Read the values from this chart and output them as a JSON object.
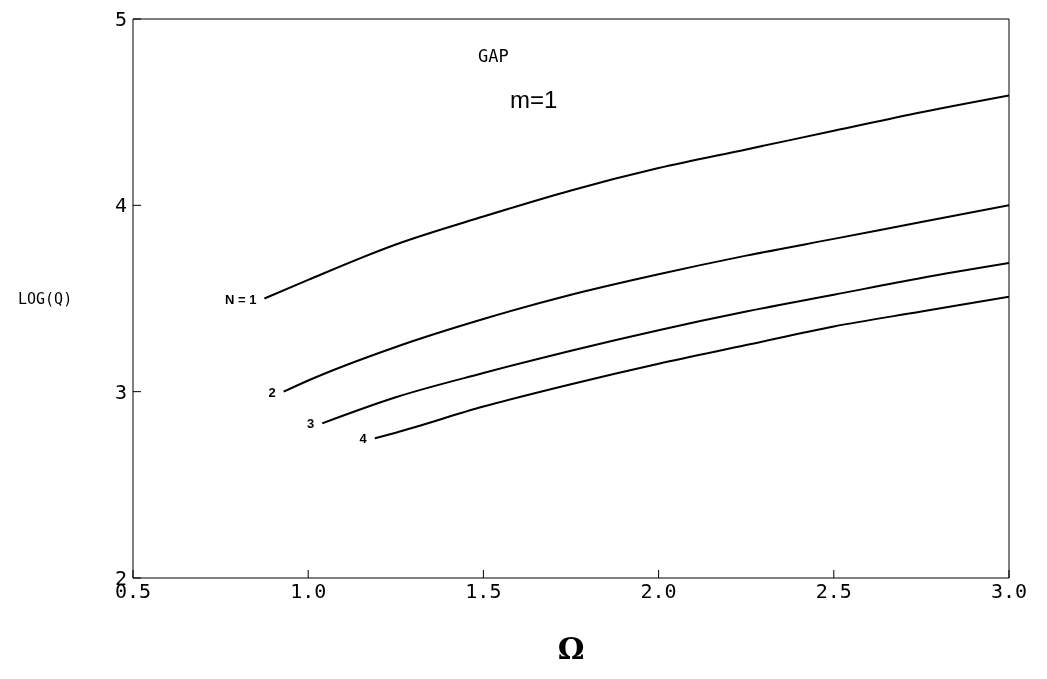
{
  "chart_data": {
    "type": "line",
    "title": "GAP",
    "annotations": [
      "m=1"
    ],
    "xlabel": "Ω",
    "ylabel": "LOG(Q)",
    "xlim": [
      0.5,
      3.0
    ],
    "xticks": [
      {
        "value": 0.5,
        "label": "0.5"
      },
      {
        "value": 1,
        "label": "1.0"
      },
      {
        "value": 1.5,
        "label": "1.5"
      },
      {
        "value": 2,
        "label": "2.0"
      },
      {
        "value": 2.5,
        "label": "2.5"
      },
      {
        "value": 3,
        "label": "3.0"
      }
    ],
    "ylim": [
      2,
      5
    ],
    "yticks": [
      2,
      3,
      4,
      5
    ],
    "marker": "none",
    "line_style": "solid",
    "series": [
      {
        "name": "N = 1",
        "color": "#000000",
        "x": [
          0.875,
          1.0,
          1.25,
          1.5,
          1.75,
          2.0,
          2.25,
          2.5,
          2.75,
          3.0
        ],
        "values": [
          3.5,
          3.6,
          3.79,
          3.94,
          4.08,
          4.2,
          4.3,
          4.4,
          4.5,
          4.59
        ]
      },
      {
        "name": "2",
        "color": "#000000",
        "x": [
          0.93,
          1.0,
          1.25,
          1.5,
          1.75,
          2.0,
          2.25,
          2.5,
          2.75,
          3.0
        ],
        "values": [
          3.0,
          3.06,
          3.24,
          3.39,
          3.52,
          3.63,
          3.73,
          3.82,
          3.91,
          4.0
        ]
      },
      {
        "name": "3",
        "color": "#000000",
        "x": [
          1.04,
          1.25,
          1.5,
          1.75,
          2.0,
          2.25,
          2.5,
          2.75,
          3.0
        ],
        "values": [
          2.83,
          2.97,
          3.1,
          3.22,
          3.33,
          3.43,
          3.52,
          3.61,
          3.69
        ]
      },
      {
        "name": "4",
        "color": "#000000",
        "x": [
          1.19,
          1.25,
          1.5,
          1.75,
          2.0,
          2.25,
          2.5,
          2.75,
          3.0
        ],
        "values": [
          2.75,
          2.78,
          2.92,
          3.04,
          3.15,
          3.25,
          3.35,
          3.43,
          3.51
        ]
      }
    ]
  }
}
